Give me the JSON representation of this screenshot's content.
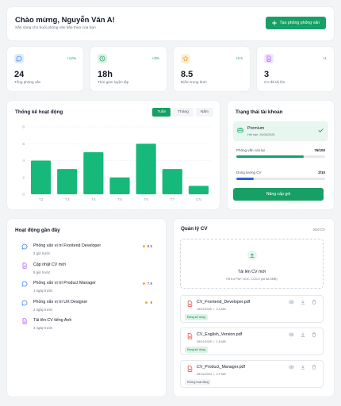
{
  "header": {
    "title": "Chào mừng, Nguyễn Văn A!",
    "subtitle": "Sẵn sàng cho buổi phỏng vấn tiếp theo của bạn",
    "create_button": "Tạo phỏng phỏng vấn"
  },
  "stats": [
    {
      "icon": "chat-icon",
      "delta": "+12%",
      "value": "24",
      "label": "Tổng phỏng vấn",
      "color": "#3b82f6",
      "bg": "#e0ecfd"
    },
    {
      "icon": "clock-icon",
      "delta": "+8%",
      "value": "18h",
      "label": "Thời gian luyện tập",
      "color": "#16a065",
      "bg": "#dcf3e6"
    },
    {
      "icon": "star-icon",
      "delta": "+0.5",
      "value": "8.5",
      "label": "Điểm trung bình",
      "color": "#f59e0b",
      "bg": "#fdf1dc"
    },
    {
      "icon": "document-icon",
      "delta": "+1",
      "value": "3",
      "label": "CV đã tải lên",
      "color": "#a855f7",
      "bg": "#f1e4fd"
    }
  ],
  "activity_chart": {
    "title": "Thống kê hoạt động",
    "tabs": [
      "Tuần",
      "Tháng",
      "Năm"
    ],
    "active_tab": 0
  },
  "chart_data": {
    "type": "bar",
    "title": "Thống kê hoạt động",
    "categories": [
      "T2",
      "T3",
      "T4",
      "T5",
      "T6",
      "T7",
      "CN"
    ],
    "values": [
      4,
      3,
      5,
      2,
      6,
      3,
      1
    ],
    "ylim": [
      0,
      8
    ],
    "yticks": [
      0,
      2,
      4,
      6,
      8
    ],
    "grid": true,
    "bar_color": "#16b979"
  },
  "account": {
    "title": "Trạng thái tài khoản",
    "plan": "Premium",
    "expiry": "Hết hạn: 30/06/2025",
    "quotas": [
      {
        "label": "Phỏng vấn còn lại",
        "value": "76/100",
        "fraction": 0.76,
        "color": "#16a065"
      },
      {
        "label": "Dung lượng CV",
        "value": "2/10",
        "fraction": 0.2,
        "color": "#2563eb"
      }
    ],
    "upgrade_button": "Nâng cấp gói"
  },
  "activities": {
    "title": "Hoạt động gần đây",
    "items": [
      {
        "icon": "chat-icon",
        "title": "Phỏng vấn vị trí Frontend Developer",
        "time": "2 giờ trước",
        "score": "8.5",
        "color": "#3b82f6"
      },
      {
        "icon": "document-icon",
        "title": "Cập nhật CV mới",
        "time": "5 giờ trước",
        "score": "",
        "color": "#a855f7"
      },
      {
        "icon": "chat-icon",
        "title": "Phỏng vấn vị trí Product Manager",
        "time": "1 ngày trước",
        "score": "7.8",
        "color": "#3b82f6"
      },
      {
        "icon": "chat-icon",
        "title": "Phỏng vấn vị trí UX Designer",
        "time": "2 ngày trước",
        "score": "9",
        "color": "#3b82f6"
      },
      {
        "icon": "document-icon",
        "title": "Tải lên CV tiếng Anh",
        "time": "3 ngày trước",
        "score": "",
        "color": "#a855f7"
      }
    ]
  },
  "cv_manager": {
    "title": "Quản lý CV",
    "count": "3/10 CV",
    "upload_title": "Tải lên CV mới",
    "upload_hint": "Hỗ trợ PDF, DOC, DOCX (tối đa 5MB)",
    "files": [
      {
        "name": "CV_Frontend_Developer.pdf",
        "date": "15/01/2025",
        "size": "2.5 MB",
        "status": "Đang sử dụng",
        "active": true
      },
      {
        "name": "CV_English_Version.pdf",
        "date": "05/01/2025",
        "size": "1.8 MB",
        "status": "Đang sử dụng",
        "active": true
      },
      {
        "name": "CV_Product_Manager.pdf",
        "date": "28/12/2024",
        "size": "2.1 MB",
        "status": "Không hoạt động",
        "active": false
      }
    ]
  }
}
